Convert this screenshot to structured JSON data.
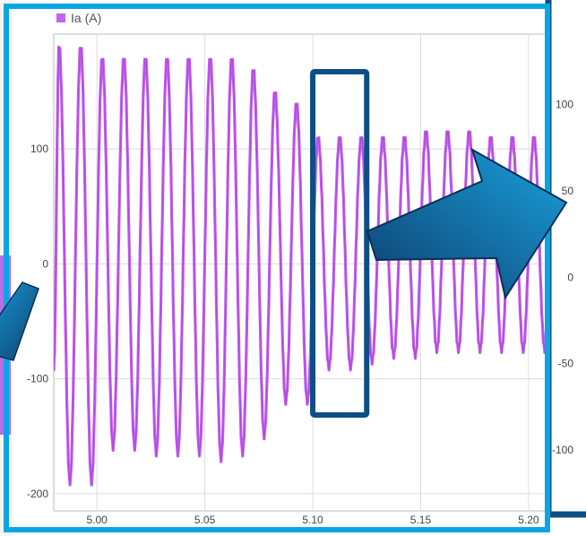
{
  "colors": {
    "series": "#c561f0",
    "series_dark": "#a63ed8",
    "frame_cyan": "#0aa6e4",
    "frame_navy": "#0b4f86",
    "arrow_light": "#1aa0dc",
    "arrow_dark": "#0d3f6e",
    "grid": "#dddddd",
    "axis": "#999999",
    "background": "#ffffff"
  },
  "chart_data": [
    {
      "type": "line",
      "title": "",
      "xlabel": "",
      "ylabel": "",
      "legend": {
        "entries": [
          "Ia (A)"
        ],
        "placement": "top-left"
      },
      "grid": true,
      "xlim": [
        4.98,
        5.21
      ],
      "ylim": [
        -215,
        200
      ],
      "xticks": [
        "5.00",
        "5.05",
        "5.10",
        "5.15",
        "5.20"
      ],
      "yticks": [
        "100",
        "0",
        "-100",
        "-200"
      ],
      "series": [
        {
          "name": "Ia (A)",
          "x": [
            4.98,
            4.9825,
            4.9875,
            4.9925,
            4.9975,
            5.0025,
            5.0075,
            5.0125,
            5.0175,
            5.0225,
            5.0275,
            5.0325,
            5.0375,
            5.0425,
            5.0475,
            5.0525,
            5.0575,
            5.0625,
            5.0675,
            5.0725,
            5.0775,
            5.0825,
            5.0875,
            5.0925,
            5.0975,
            5.1025,
            5.1075,
            5.1125,
            5.1175,
            5.1225,
            5.1275,
            5.1325,
            5.1375,
            5.1425,
            5.1475,
            5.1525,
            5.1575,
            5.1625,
            5.1675,
            5.1725,
            5.1775,
            5.1825,
            5.1875,
            5.1925,
            5.1975,
            5.2025,
            5.2075,
            5.21
          ],
          "y": [
            -90,
            190,
            -190,
            190,
            -190,
            180,
            -160,
            180,
            -160,
            180,
            -165,
            180,
            -165,
            180,
            -165,
            180,
            -170,
            180,
            -165,
            170,
            -150,
            150,
            -120,
            140,
            -120,
            110,
            -90,
            110,
            -90,
            110,
            -85,
            110,
            -80,
            110,
            -80,
            115,
            -75,
            115,
            -75,
            115,
            -75,
            110,
            -75,
            110,
            -75,
            110,
            -75,
            30
          ]
        }
      ],
      "annotations": [
        {
          "type": "highlight-box",
          "x_range": [
            5.1,
            5.125
          ]
        }
      ]
    },
    {
      "type": "line",
      "title": "",
      "xlabel": "",
      "ylabel": "",
      "grid": false,
      "ylim": [
        -130,
        150
      ],
      "yticks": [
        "100",
        "50",
        "0",
        "-50",
        "-100"
      ],
      "series": []
    }
  ]
}
